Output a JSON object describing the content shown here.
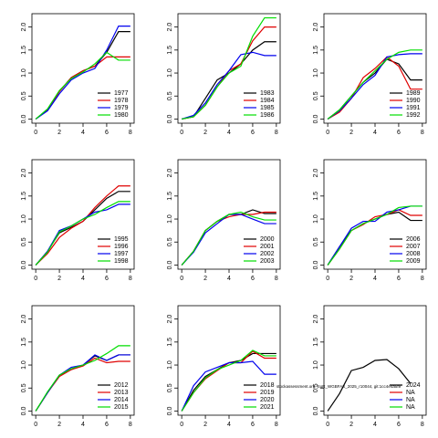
{
  "annotation": "stockassessment.org, SoR_WGBFAS_2025_r10044, git:1cc4e4a5f9",
  "chart_data": [
    {
      "type": "line",
      "x": [
        0,
        1,
        2,
        3,
        4,
        5,
        6,
        7,
        8
      ],
      "xlim": [
        -0.32,
        8.32
      ],
      "ylim": [
        -0.09,
        2.29
      ],
      "xticks": [
        0,
        2,
        4,
        6,
        8
      ],
      "yticks": [
        {
          "value": 0,
          "label": "0.0"
        },
        {
          "value": 0.5,
          "label": "0.5"
        },
        {
          "value": 1,
          "label": "1.0"
        },
        {
          "value": 1.5,
          "label": "1.5"
        },
        {
          "value": 2,
          "label": "2.0"
        }
      ],
      "legend": "bottom-right",
      "series": [
        {
          "name": "1977",
          "color": "#000000",
          "values": [
            0,
            0.2,
            0.6,
            0.9,
            1.05,
            1.15,
            1.45,
            1.9,
            1.9
          ]
        },
        {
          "name": "1978",
          "color": "#df0000",
          "values": [
            0,
            0.2,
            0.6,
            0.9,
            1.05,
            1.15,
            1.35,
            1.35,
            1.35
          ]
        },
        {
          "name": "1979",
          "color": "#0000ee",
          "values": [
            0,
            0.18,
            0.55,
            0.85,
            1.0,
            1.1,
            1.5,
            2.02,
            2.02
          ]
        },
        {
          "name": "1980",
          "color": "#00dd00",
          "values": [
            0,
            0.22,
            0.62,
            0.88,
            1.02,
            1.2,
            1.45,
            1.28,
            1.28
          ]
        }
      ]
    },
    {
      "type": "line",
      "x": [
        0,
        1,
        2,
        3,
        4,
        5,
        6,
        7,
        8
      ],
      "xlim": [
        -0.32,
        8.32
      ],
      "ylim": [
        -0.09,
        2.29
      ],
      "xticks": [
        0,
        2,
        4,
        6,
        8
      ],
      "yticks": [
        {
          "value": 0,
          "label": "0.0"
        },
        {
          "value": 0.5,
          "label": "0.5"
        },
        {
          "value": 1,
          "label": "1.0"
        },
        {
          "value": 1.5,
          "label": "1.5"
        },
        {
          "value": 2,
          "label": "2.0"
        }
      ],
      "legend": "bottom-right",
      "series": [
        {
          "name": "1983",
          "color": "#000000",
          "values": [
            0,
            0.05,
            0.45,
            0.85,
            1.0,
            1.2,
            1.5,
            1.68,
            1.68
          ]
        },
        {
          "name": "1984",
          "color": "#df0000",
          "values": [
            0,
            0.05,
            0.3,
            0.7,
            1.05,
            1.2,
            1.7,
            2.0,
            2.0
          ]
        },
        {
          "name": "1985",
          "color": "#0000ee",
          "values": [
            0,
            0.08,
            0.35,
            0.75,
            1.05,
            1.4,
            1.45,
            1.38,
            1.38
          ]
        },
        {
          "name": "1986",
          "color": "#00dd00",
          "values": [
            0,
            0.05,
            0.3,
            0.7,
            1.0,
            1.15,
            1.8,
            2.2,
            2.2
          ]
        }
      ]
    },
    {
      "type": "line",
      "x": [
        0,
        1,
        2,
        3,
        4,
        5,
        6,
        7,
        8
      ],
      "xlim": [
        -0.32,
        8.32
      ],
      "ylim": [
        -0.09,
        2.29
      ],
      "xticks": [
        0,
        2,
        4,
        6,
        8
      ],
      "yticks": [
        {
          "value": 0,
          "label": "0.0"
        },
        {
          "value": 0.5,
          "label": "0.5"
        },
        {
          "value": 1,
          "label": "1.0"
        },
        {
          "value": 1.5,
          "label": "1.5"
        },
        {
          "value": 2,
          "label": "2.0"
        }
      ],
      "legend": "bottom-right",
      "series": [
        {
          "name": "1989",
          "color": "#000000",
          "values": [
            0,
            0.2,
            0.5,
            0.8,
            1.0,
            1.3,
            1.2,
            0.85,
            0.85
          ]
        },
        {
          "name": "1990",
          "color": "#df0000",
          "values": [
            0,
            0.15,
            0.45,
            0.9,
            1.1,
            1.35,
            1.15,
            0.65,
            0.65
          ]
        },
        {
          "name": "1991",
          "color": "#0000ee",
          "values": [
            0,
            0.18,
            0.45,
            0.75,
            0.95,
            1.35,
            1.4,
            1.42,
            1.42
          ]
        },
        {
          "name": "1992",
          "color": "#00dd00",
          "values": [
            0,
            0.2,
            0.5,
            0.8,
            1.05,
            1.3,
            1.45,
            1.5,
            1.5
          ]
        }
      ]
    },
    {
      "type": "line",
      "x": [
        0,
        1,
        2,
        3,
        4,
        5,
        6,
        7,
        8
      ],
      "xlim": [
        -0.32,
        8.32
      ],
      "ylim": [
        -0.09,
        2.29
      ],
      "xticks": [
        0,
        2,
        4,
        6,
        8
      ],
      "yticks": [
        {
          "value": 0,
          "label": "0.0"
        },
        {
          "value": 0.5,
          "label": "0.5"
        },
        {
          "value": 1,
          "label": "1.0"
        },
        {
          "value": 1.5,
          "label": "1.5"
        },
        {
          "value": 2,
          "label": "2.0"
        }
      ],
      "legend": "bottom-right",
      "series": [
        {
          "name": "1995",
          "color": "#000000",
          "values": [
            0,
            0.3,
            0.7,
            0.82,
            0.95,
            1.2,
            1.45,
            1.6,
            1.6
          ]
        },
        {
          "name": "1996",
          "color": "#df0000",
          "values": [
            0,
            0.25,
            0.6,
            0.8,
            0.95,
            1.25,
            1.5,
            1.72,
            1.72
          ]
        },
        {
          "name": "1997",
          "color": "#0000ee",
          "values": [
            0,
            0.3,
            0.75,
            0.85,
            1.0,
            1.15,
            1.2,
            1.32,
            1.32
          ]
        },
        {
          "name": "1998",
          "color": "#00dd00",
          "values": [
            0,
            0.28,
            0.72,
            0.85,
            1.0,
            1.1,
            1.25,
            1.38,
            1.38
          ]
        }
      ]
    },
    {
      "type": "line",
      "x": [
        0,
        1,
        2,
        3,
        4,
        5,
        6,
        7,
        8
      ],
      "xlim": [
        -0.32,
        8.32
      ],
      "ylim": [
        -0.09,
        2.29
      ],
      "xticks": [
        0,
        2,
        4,
        6,
        8
      ],
      "yticks": [
        {
          "value": 0,
          "label": "0.0"
        },
        {
          "value": 0.5,
          "label": "0.5"
        },
        {
          "value": 1,
          "label": "1.0"
        },
        {
          "value": 1.5,
          "label": "1.5"
        },
        {
          "value": 2,
          "label": "2.0"
        }
      ],
      "legend": "bottom-right",
      "series": [
        {
          "name": "2000",
          "color": "#000000",
          "values": [
            0,
            0.3,
            0.75,
            0.95,
            1.1,
            1.1,
            1.2,
            1.12,
            1.12
          ]
        },
        {
          "name": "2001",
          "color": "#df0000",
          "values": [
            0,
            0.3,
            0.75,
            0.95,
            1.05,
            1.1,
            1.1,
            1.15,
            1.15
          ]
        },
        {
          "name": "2002",
          "color": "#0000ee",
          "values": [
            0,
            0.28,
            0.7,
            0.9,
            1.1,
            1.1,
            1.0,
            0.9,
            0.9
          ]
        },
        {
          "name": "2003",
          "color": "#00dd00",
          "values": [
            0,
            0.3,
            0.75,
            0.95,
            1.1,
            1.15,
            1.05,
            0.98,
            0.98
          ]
        }
      ]
    },
    {
      "type": "line",
      "x": [
        0,
        1,
        2,
        3,
        4,
        5,
        6,
        7,
        8
      ],
      "xlim": [
        -0.32,
        8.32
      ],
      "ylim": [
        -0.09,
        2.29
      ],
      "xticks": [
        0,
        2,
        4,
        6,
        8
      ],
      "yticks": [
        {
          "value": 0,
          "label": "0.0"
        },
        {
          "value": 0.5,
          "label": "0.5"
        },
        {
          "value": 1,
          "label": "1.0"
        },
        {
          "value": 1.5,
          "label": "1.5"
        },
        {
          "value": 2,
          "label": "2.0"
        }
      ],
      "legend": "bottom-right",
      "series": [
        {
          "name": "2006",
          "color": "#000000",
          "values": [
            0,
            0.4,
            0.75,
            0.9,
            1.0,
            1.1,
            1.15,
            0.97,
            0.97
          ]
        },
        {
          "name": "2007",
          "color": "#df0000",
          "values": [
            0,
            0.35,
            0.75,
            0.88,
            1.05,
            1.1,
            1.2,
            1.08,
            1.08
          ]
        },
        {
          "name": "2008",
          "color": "#0000ee",
          "values": [
            0,
            0.4,
            0.8,
            0.95,
            0.95,
            1.15,
            1.2,
            1.28,
            1.28
          ]
        },
        {
          "name": "2009",
          "color": "#00dd00",
          "values": [
            0,
            0.35,
            0.75,
            0.9,
            1.0,
            1.1,
            1.25,
            1.28,
            1.28
          ]
        }
      ]
    },
    {
      "type": "line",
      "x": [
        0,
        1,
        2,
        3,
        4,
        5,
        6,
        7,
        8
      ],
      "xlim": [
        -0.32,
        8.32
      ],
      "ylim": [
        -0.09,
        2.29
      ],
      "xticks": [
        0,
        2,
        4,
        6,
        8
      ],
      "yticks": [
        {
          "value": 0,
          "label": "0.0"
        },
        {
          "value": 0.5,
          "label": "0.5"
        },
        {
          "value": 1,
          "label": "1.0"
        },
        {
          "value": 1.5,
          "label": "1.5"
        },
        {
          "value": 2,
          "label": "2.0"
        }
      ],
      "legend": "bottom-right",
      "series": [
        {
          "name": "2012",
          "color": "#000000",
          "values": [
            0,
            0.4,
            0.78,
            0.9,
            1.0,
            1.2,
            1.1,
            1.22,
            1.22
          ]
        },
        {
          "name": "2013",
          "color": "#df0000",
          "values": [
            0,
            0.4,
            0.75,
            0.9,
            0.98,
            1.15,
            1.05,
            1.08,
            1.08
          ]
        },
        {
          "name": "2014",
          "color": "#0000ee",
          "values": [
            0,
            0.4,
            0.78,
            0.95,
            1.0,
            1.22,
            1.1,
            1.22,
            1.22
          ]
        },
        {
          "name": "2015",
          "color": "#00dd00",
          "values": [
            0,
            0.42,
            0.78,
            0.92,
            1.0,
            1.1,
            1.25,
            1.42,
            1.42
          ]
        }
      ]
    },
    {
      "type": "line",
      "x": [
        0,
        1,
        2,
        3,
        4,
        5,
        6,
        7,
        8
      ],
      "xlim": [
        -0.32,
        8.32
      ],
      "ylim": [
        -0.09,
        2.29
      ],
      "xticks": [
        0,
        2,
        4,
        6,
        8
      ],
      "yticks": [
        {
          "value": 0,
          "label": "0.0"
        },
        {
          "value": 0.5,
          "label": "0.5"
        },
        {
          "value": 1,
          "label": "1.0"
        },
        {
          "value": 1.5,
          "label": "1.5"
        },
        {
          "value": 2,
          "label": "2.0"
        }
      ],
      "legend": "bottom-right",
      "series": [
        {
          "name": "2018",
          "color": "#000000",
          "values": [
            0,
            0.45,
            0.75,
            0.9,
            1.05,
            1.1,
            1.25,
            1.25,
            1.25
          ]
        },
        {
          "name": "2019",
          "color": "#df0000",
          "values": [
            0,
            0.4,
            0.7,
            0.88,
            1.05,
            1.05,
            1.3,
            1.15,
            1.15
          ]
        },
        {
          "name": "2020",
          "color": "#0000ee",
          "values": [
            0,
            0.55,
            0.85,
            0.95,
            1.05,
            1.05,
            1.08,
            0.8,
            0.8
          ]
        },
        {
          "name": "2021",
          "color": "#00dd00",
          "values": [
            0,
            0.4,
            0.72,
            0.9,
            1.0,
            1.1,
            1.32,
            1.2,
            1.2
          ]
        }
      ]
    },
    {
      "type": "line",
      "x": [
        0,
        1,
        2,
        3,
        4,
        5,
        6,
        7,
        8
      ],
      "xlim": [
        -0.32,
        8.32
      ],
      "ylim": [
        -0.09,
        2.29
      ],
      "xticks": [
        0,
        2,
        4,
        6,
        8
      ],
      "yticks": [
        {
          "value": 0,
          "label": "0.0"
        },
        {
          "value": 0.5,
          "label": "0.5"
        },
        {
          "value": 1,
          "label": "1.0"
        },
        {
          "value": 1.5,
          "label": "1.5"
        },
        {
          "value": 2,
          "label": "2.0"
        }
      ],
      "legend": "bottom-right",
      "series": [
        {
          "name": "2024",
          "color": "#000000",
          "values": [
            0,
            0.38,
            0.88,
            0.95,
            1.1,
            1.12,
            0.92,
            0.6,
            null
          ]
        },
        {
          "name": "NA",
          "color": "#df0000",
          "values": [
            null,
            null,
            null,
            null,
            null,
            null,
            null,
            null,
            null
          ]
        },
        {
          "name": "NA",
          "color": "#0000ee",
          "values": [
            null,
            null,
            null,
            null,
            null,
            null,
            null,
            null,
            null
          ]
        },
        {
          "name": "NA",
          "color": "#00dd00",
          "values": [
            null,
            null,
            null,
            null,
            null,
            null,
            null,
            null,
            null
          ]
        }
      ]
    }
  ]
}
